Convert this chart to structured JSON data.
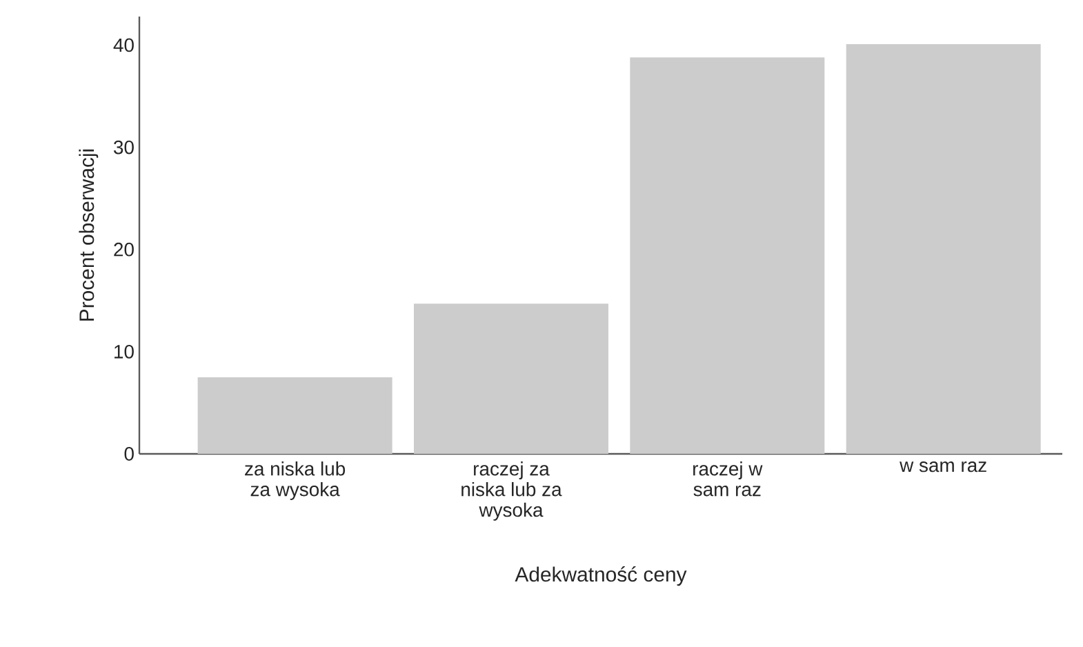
{
  "chart_data": {
    "type": "bar",
    "xlabel": "Adekwatność ceny",
    "ylabel": "Procent obserwacji",
    "categories": [
      "za niska lub za wysoka",
      "raczej za niska lub za wysoka",
      "raczej w sam raz",
      "w sam raz"
    ],
    "values": [
      7.5,
      14.7,
      38.8,
      40.1
    ],
    "color": "#cccccc",
    "ylim": [
      0,
      42.8
    ],
    "yticks": [
      0,
      10,
      20,
      30,
      40
    ],
    "grid": false
  }
}
